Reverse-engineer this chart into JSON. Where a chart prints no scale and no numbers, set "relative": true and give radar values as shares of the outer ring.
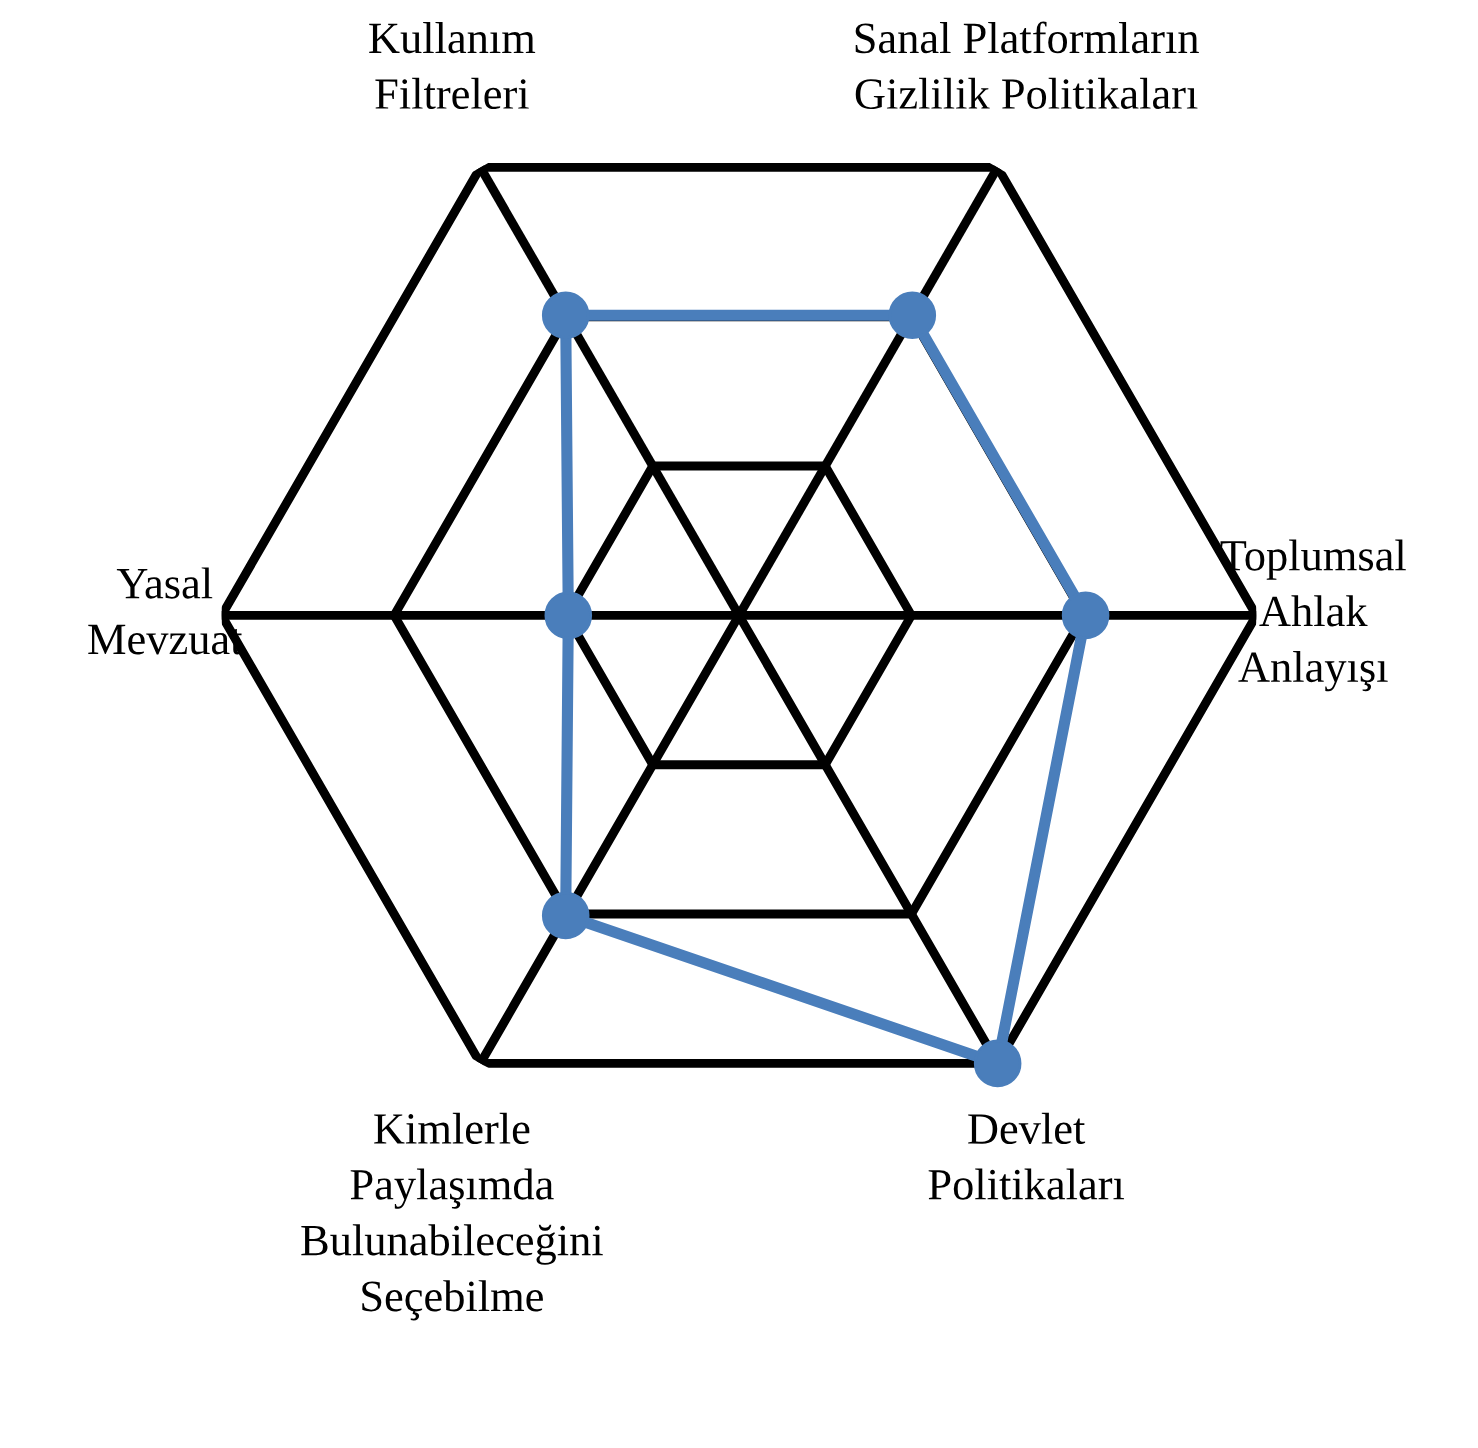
{
  "chart_data": {
    "type": "radar",
    "relative": true,
    "categories": [
      "Sanal Platformların\nGizlilik Politikaları",
      "Toplumsal\nAhlak\nAnlayışı",
      "Devlet\nPolitikaları",
      "Kimlerle\nPaylaşımda\nBulunabileceğini\nSeçebilme",
      "Yasal\nMevzuat",
      "Kullanım\nFiltreleri"
    ],
    "series": [
      {
        "color": "#4a7ebb",
        "values": [
          0.67,
          0.67,
          1,
          0.67,
          0.33,
          0.67
        ]
      }
    ],
    "marker": "circle",
    "line_style": "solid",
    "grid": true
  }
}
